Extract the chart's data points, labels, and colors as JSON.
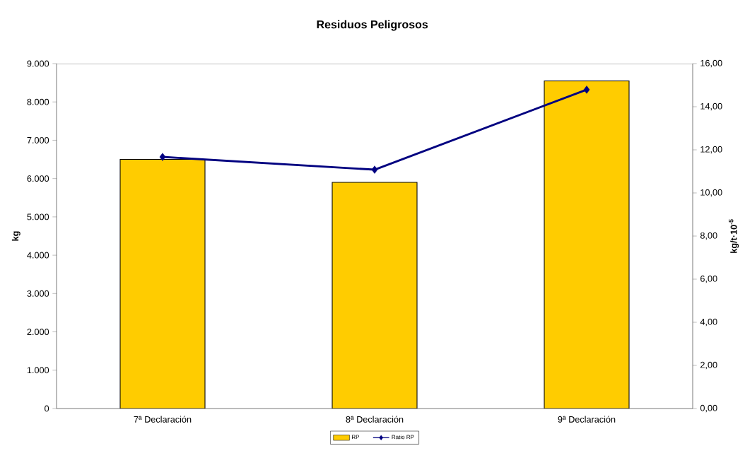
{
  "chart_data": {
    "type": "bar",
    "title": "Residuos Peligrosos",
    "ylabel": "kg",
    "y2label": "kg/t·10$^{-5}$",
    "categories": [
      "7ª Declaración",
      "8ª Declaración",
      "9ª Declaración"
    ],
    "series": [
      {
        "name": "RP",
        "color": "#ffcc00",
        "values": [
          6500,
          5900,
          8550
        ]
      },
      {
        "name": "Ratio RP",
        "type": "line",
        "axis": "y2",
        "color": "#000080",
        "values": [
          11.67,
          11.08,
          14.79
        ]
      }
    ],
    "marker": "diamond",
    "legend": "bottom",
    "ylim": [
      0,
      9000
    ],
    "yticks": [
      0,
      {
        "value": 1000,
        "label": "1.000"
      },
      {
        "value": 2000,
        "label": "2.000"
      },
      {
        "value": 3000,
        "label": "3.000"
      },
      {
        "value": 4000,
        "label": "4.000"
      },
      {
        "value": 5000,
        "label": "5.000"
      },
      {
        "value": 6000,
        "label": "6.000"
      },
      {
        "value": 7000,
        "label": "7.000"
      },
      {
        "value": 8000,
        "label": "8.000"
      },
      {
        "value": 9000,
        "label": "9.000"
      }
    ],
    "y2lim": [
      0,
      16
    ],
    "y2ticks": [
      {
        "value": 0,
        "label": "0,00"
      },
      {
        "value": 2,
        "label": "2,00"
      },
      {
        "value": 4,
        "label": "4,00"
      },
      {
        "value": 6,
        "label": "6,00"
      },
      {
        "value": 8,
        "label": "8,00"
      },
      {
        "value": 10,
        "label": "10,00"
      },
      {
        "value": 12,
        "label": "12,00"
      },
      {
        "value": 14,
        "label": "14,00"
      },
      {
        "value": 16,
        "label": "16,00"
      }
    ]
  }
}
